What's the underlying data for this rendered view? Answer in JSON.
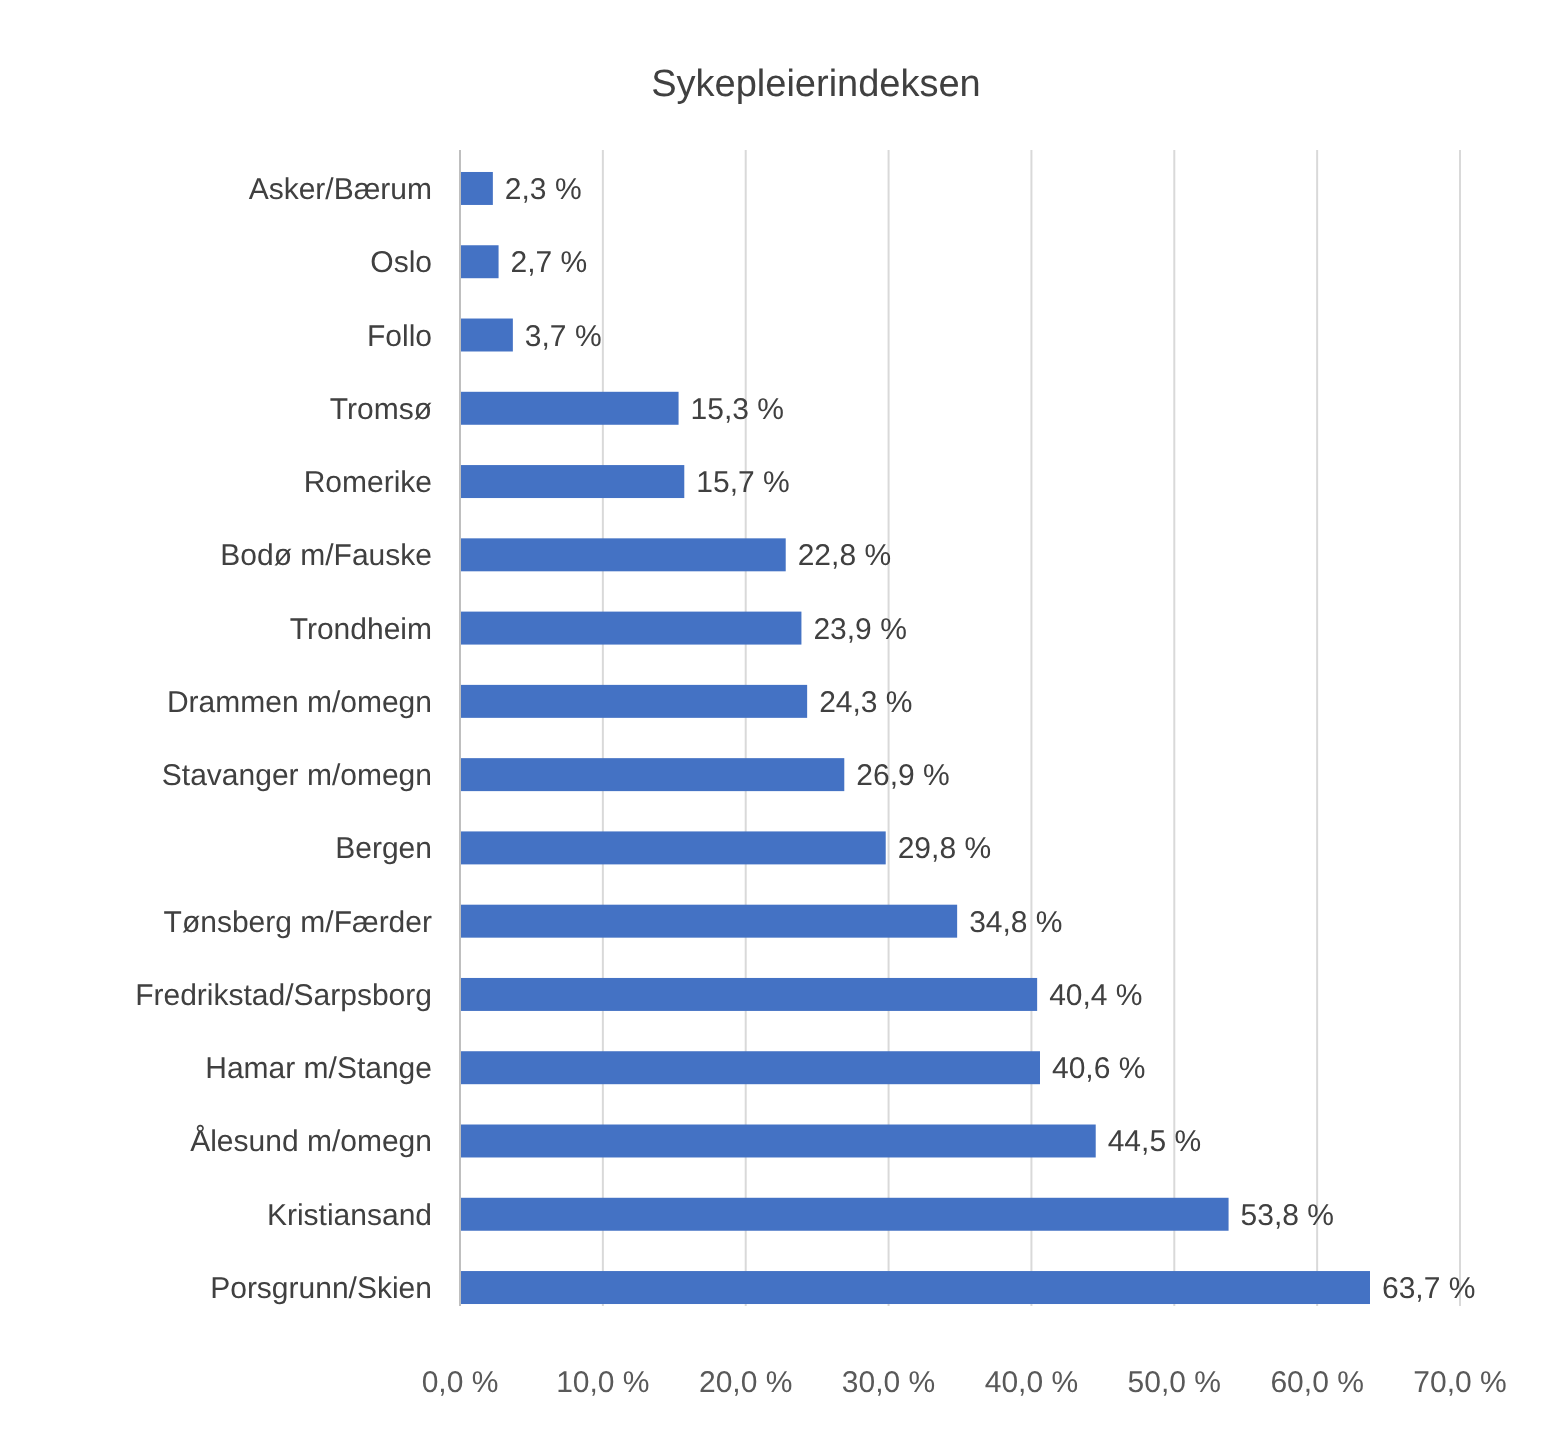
{
  "chart_data": {
    "type": "bar",
    "orientation": "horizontal",
    "title": "Sykepleierindeksen",
    "categories": [
      "Asker/Bærum",
      "Oslo",
      "Follo",
      "Tromsø",
      "Romerike",
      "Bodø m/Fauske",
      "Trondheim",
      "Drammen m/omegn",
      "Stavanger m/omegn",
      "Bergen",
      "Tønsberg m/Færder",
      "Fredrikstad/Sarpsborg",
      "Hamar m/Stange",
      "Ålesund m/omegn",
      "Kristiansand",
      "Porsgrunn/Skien"
    ],
    "values": [
      2.3,
      2.7,
      3.7,
      15.3,
      15.7,
      22.8,
      23.9,
      24.3,
      26.9,
      29.8,
      34.8,
      40.4,
      40.6,
      44.5,
      53.8,
      63.7
    ],
    "value_labels": [
      "2,3 %",
      "2,7 %",
      "3,7 %",
      "15,3 %",
      "15,7 %",
      "22,8 %",
      "23,9 %",
      "24,3 %",
      "26,9 %",
      "29,8 %",
      "34,8 %",
      "40,4 %",
      "40,6 %",
      "44,5 %",
      "53,8 %",
      "63,7 %"
    ],
    "color": "#4472c4",
    "xlim": [
      0,
      70
    ],
    "xticks": [
      {
        "value": 0,
        "label": "0,0 %"
      },
      {
        "value": 10,
        "label": "10,0 %"
      },
      {
        "value": 20,
        "label": "20,0 %"
      },
      {
        "value": 30,
        "label": "30,0 %"
      },
      {
        "value": 40,
        "label": "40,0 %"
      },
      {
        "value": 50,
        "label": "50,0 %"
      },
      {
        "value": 60,
        "label": "60,0 %"
      },
      {
        "value": 70,
        "label": "70,0 %"
      }
    ],
    "grid": "x"
  }
}
